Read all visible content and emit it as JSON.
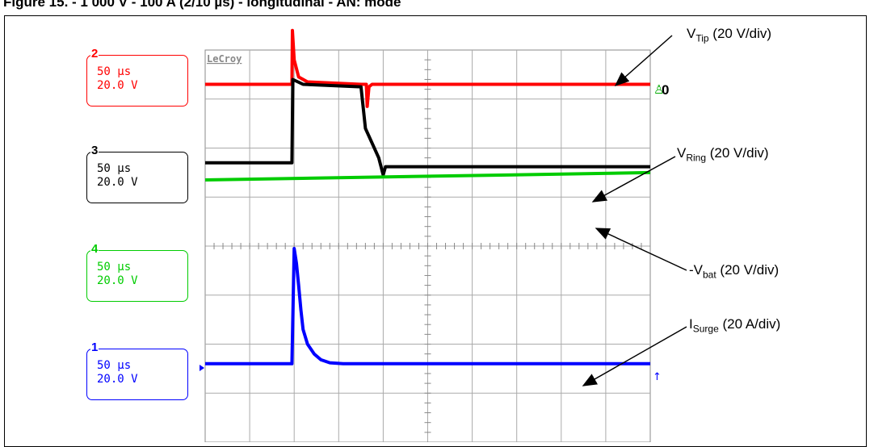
{
  "figure": {
    "title": "Figure 15. - 1 000 V - 100 A (2/10 µs) - longitudinal - AN: mode"
  },
  "scope": {
    "brand": "LeCroy",
    "trigger_marker": "0"
  },
  "channels": [
    {
      "id": "2",
      "timebase": "50 µs",
      "volts": "20.0 V",
      "color": "#ff0000"
    },
    {
      "id": "3",
      "timebase": "50 µs",
      "volts": "20.0 V",
      "color": "#000000"
    },
    {
      "id": "4",
      "timebase": "50 µs",
      "volts": "20.0 V",
      "color": "#00cc00"
    },
    {
      "id": "1",
      "timebase": "50 µs",
      "volts": "20.0 V",
      "color": "#0000ff"
    }
  ],
  "annotations": {
    "tip": {
      "main": "V",
      "sub": "Tip",
      "scale": " (20 V/div)"
    },
    "ring": {
      "main": "V",
      "sub": "Ring",
      "scale": " (20 V/div)"
    },
    "vbat": {
      "main": "-V",
      "sub": "bat",
      "scale": " (20 V/div)"
    },
    "surge": {
      "main": "I",
      "sub": "Surge",
      "scale": " (20 A/div)"
    }
  },
  "chart_data": {
    "type": "line",
    "x_unit": "div",
    "xlim": [
      0,
      10
    ],
    "ylim": [
      -4,
      4
    ],
    "grid": true,
    "series": [
      {
        "name": "VTip",
        "color": "#ff0000",
        "points": [
          [
            0,
            3.3
          ],
          [
            1.95,
            3.3
          ],
          [
            1.96,
            4.4
          ],
          [
            2.0,
            3.8
          ],
          [
            2.1,
            3.45
          ],
          [
            2.3,
            3.35
          ],
          [
            3.5,
            3.3
          ],
          [
            3.62,
            3.3
          ],
          [
            3.64,
            2.85
          ],
          [
            3.68,
            3.25
          ],
          [
            3.75,
            3.3
          ],
          [
            10,
            3.3
          ]
        ]
      },
      {
        "name": "VRing",
        "color": "#000000",
        "points": [
          [
            0,
            1.7
          ],
          [
            1.95,
            1.7
          ],
          [
            1.97,
            3.4
          ],
          [
            2.2,
            3.3
          ],
          [
            3.5,
            3.25
          ],
          [
            3.6,
            2.4
          ],
          [
            3.7,
            2.2
          ],
          [
            3.9,
            1.8
          ],
          [
            4.0,
            1.45
          ],
          [
            4.05,
            1.62
          ],
          [
            4.3,
            1.62
          ],
          [
            10,
            1.62
          ]
        ]
      },
      {
        "name": "-Vbat",
        "color": "#00cc00",
        "points": [
          [
            0,
            1.35
          ],
          [
            10,
            1.5
          ]
        ]
      },
      {
        "name": "ISurge",
        "color": "#0000ff",
        "points": [
          [
            0,
            -2.4
          ],
          [
            1.95,
            -2.4
          ],
          [
            2.0,
            -0.05
          ],
          [
            2.05,
            -0.35
          ],
          [
            2.1,
            -0.8
          ],
          [
            2.15,
            -1.3
          ],
          [
            2.2,
            -1.7
          ],
          [
            2.3,
            -2.0
          ],
          [
            2.45,
            -2.2
          ],
          [
            2.6,
            -2.32
          ],
          [
            2.8,
            -2.38
          ],
          [
            3.1,
            -2.4
          ],
          [
            10,
            -2.4
          ]
        ]
      }
    ]
  }
}
